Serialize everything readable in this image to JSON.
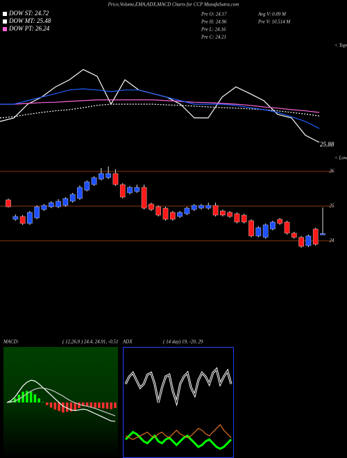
{
  "header": {
    "stats": [
      "Pre  O: 24.17",
      "Pre  H: 24.96",
      "Pre  L: 24.16",
      "Pre  C: 24.21",
      "Avg V: 0.09 M",
      "Pre  V: 10.514  M"
    ]
  },
  "chart_data": [
    {
      "type": "line",
      "title": "Price,Volume,EMA,ADX,MACD Charts for CCP MunafaSutra.com",
      "ylim": [
        23.8,
        26.8
      ],
      "annotations": [
        "25.88",
        "< Tops",
        "< Lows"
      ],
      "series": [
        {
          "name": "DOW ST: 24.72",
          "color": "#ffffff",
          "values": [
            24.77,
            24.86,
            25.21,
            25.39,
            25.65,
            25.83,
            26.09,
            25.92,
            25.21,
            25.83,
            25.57,
            25.48,
            25.39,
            25.21,
            24.86,
            24.86,
            25.39,
            25.65,
            25.48,
            25.3,
            24.95,
            24.86,
            24.42,
            24.24
          ]
        },
        {
          "name": "DOW MT: 25.48",
          "color": "#ffffff",
          "dashed": true,
          "values": [
            24.86,
            24.89,
            24.95,
            25.0,
            25.04,
            25.07,
            25.12,
            25.18,
            25.21,
            25.21,
            25.21,
            25.21,
            25.19,
            25.18,
            25.16,
            25.14,
            25.12,
            25.11,
            25.09,
            25.07,
            25.04,
            25.0,
            24.96,
            24.91
          ]
        },
        {
          "name": "DOW PT: 26.24",
          "color": "#ff66dd",
          "values": [
            25.21,
            25.21,
            25.23,
            25.25,
            25.26,
            25.28,
            25.3,
            25.32,
            25.32,
            25.32,
            25.32,
            25.32,
            25.3,
            25.28,
            25.26,
            25.25,
            25.23,
            25.21,
            25.18,
            25.14,
            25.11,
            25.07,
            25.04,
            25.0
          ]
        },
        {
          "color": "#2060ff",
          "values": [
            25.21,
            25.21,
            25.3,
            25.39,
            25.48,
            25.57,
            25.6,
            25.57,
            25.53,
            25.57,
            25.57,
            25.48,
            25.39,
            25.3,
            25.21,
            25.21,
            25.21,
            25.18,
            25.12,
            25.07,
            25.0,
            24.89,
            24.77,
            24.59
          ]
        }
      ]
    },
    {
      "type": "candlestick",
      "ylim": [
        23.7,
        26.3
      ],
      "yticks": [
        25,
        26,
        24
      ],
      "grid": true,
      "up_color": "#1e50ff",
      "down_color": "#ff1a1a",
      "open": [
        25.18,
        24.62,
        24.7,
        24.5,
        24.66,
        24.9,
        24.98,
        24.98,
        25.02,
        25.14,
        25.22,
        25.46,
        25.62,
        25.78,
        25.82,
        25.94,
        25.62,
        25.38,
        25.42,
        25.54,
        25.06,
        24.98,
        24.94,
        24.82,
        24.7,
        24.78,
        24.9,
        24.94,
        24.94,
        25.02,
        24.86,
        24.82,
        24.78,
        24.74,
        24.58,
        24.14,
        24.1,
        24.34,
        24.62,
        24.54,
        24.22,
        24.1,
        23.86,
        24.34,
        24.17
      ],
      "high": [
        25.22,
        24.76,
        24.74,
        24.86,
        25.02,
        25.06,
        25.14,
        25.2,
        25.26,
        25.38,
        25.6,
        25.74,
        25.86,
        26.1,
        26.14,
        26.06,
        25.66,
        25.58,
        25.62,
        25.62,
        25.1,
        25.02,
        24.98,
        24.86,
        24.86,
        24.98,
        25.06,
        25.06,
        25.1,
        25.1,
        24.9,
        24.86,
        24.82,
        24.78,
        24.62,
        24.42,
        24.5,
        24.58,
        24.66,
        24.58,
        24.26,
        24.14,
        24.18,
        24.38,
        24.96
      ],
      "low": [
        24.96,
        24.58,
        24.46,
        24.46,
        24.62,
        24.86,
        24.94,
        24.94,
        24.98,
        25.1,
        25.18,
        25.42,
        25.58,
        25.74,
        25.78,
        25.58,
        25.22,
        25.34,
        25.38,
        24.9,
        24.86,
        24.7,
        24.58,
        24.58,
        24.66,
        24.74,
        24.86,
        24.9,
        24.9,
        24.7,
        24.7,
        24.66,
        24.5,
        24.5,
        24.1,
        24.1,
        24.06,
        24.3,
        24.46,
        24.18,
        24.06,
        23.8,
        23.82,
        23.86,
        24.16
      ],
      "close": [
        24.98,
        24.7,
        24.5,
        24.82,
        24.98,
        25.02,
        25.1,
        25.14,
        25.22,
        25.34,
        25.54,
        25.7,
        25.82,
        25.94,
        25.94,
        25.62,
        25.26,
        25.54,
        25.54,
        24.94,
        24.9,
        24.74,
        24.62,
        24.62,
        24.82,
        24.94,
        25.02,
        25.02,
        25.02,
        24.74,
        24.74,
        24.7,
        24.54,
        24.54,
        24.14,
        24.38,
        24.46,
        24.54,
        24.5,
        24.22,
        24.1,
        23.84,
        24.14,
        23.9,
        24.21
      ]
    },
    {
      "type": "macd",
      "title": "MACD:",
      "subtitle": "( 12,26,9 ) 24.4, 24.91, -0.51",
      "ylim": [
        -1.5,
        1.5
      ],
      "positive_color": "#00ff00",
      "negative_color": "#ff3030",
      "series": [
        {
          "color": "#ffffff",
          "values": [
            0,
            0.05,
            0.15,
            0.3,
            0.45,
            0.55,
            0.6,
            0.58,
            0.5,
            0.4,
            0.3,
            0.2,
            0.1,
            0.0,
            -0.1,
            -0.15,
            -0.2,
            -0.22,
            -0.2,
            -0.18,
            -0.2,
            -0.25,
            -0.3,
            -0.35,
            -0.4,
            -0.45,
            -0.5,
            -0.51
          ]
        },
        {
          "color": "#cccccc",
          "values": [
            0,
            0.01,
            0.04,
            0.09,
            0.16,
            0.24,
            0.31,
            0.36,
            0.39,
            0.39,
            0.37,
            0.34,
            0.29,
            0.23,
            0.17,
            0.1,
            0.04,
            -0.01,
            -0.05,
            -0.08,
            -0.1,
            -0.13,
            -0.16,
            -0.2,
            -0.24,
            -0.28,
            -0.32,
            -0.36
          ]
        }
      ],
      "histogram": [
        0,
        0.04,
        0.11,
        0.21,
        0.29,
        0.31,
        0.29,
        0.22,
        0.11,
        0.01,
        -0.07,
        -0.14,
        -0.19,
        -0.23,
        -0.27,
        -0.25,
        -0.24,
        -0.21,
        -0.15,
        -0.1,
        -0.1,
        -0.12,
        -0.14,
        -0.15,
        -0.16,
        -0.17,
        -0.18,
        -0.15
      ]
    },
    {
      "type": "adx",
      "title": "ADX",
      "subtitle": "( 14  day) 19,  -20,  29",
      "ylim": [
        0,
        60
      ],
      "series": [
        {
          "color": "#ffffff",
          "double": true,
          "values": [
            40,
            44,
            46,
            42,
            38,
            40,
            45,
            46,
            40,
            30,
            38,
            44,
            45,
            36,
            30,
            40,
            44,
            46,
            38,
            34,
            42,
            46,
            44,
            40,
            46,
            48,
            40,
            44,
            47,
            40
          ]
        },
        {
          "color": "#00ff00",
          "width": 3,
          "values": [
            10,
            12,
            14,
            13,
            11,
            9,
            8,
            10,
            12,
            9,
            8,
            10,
            11,
            9,
            7,
            9,
            11,
            12,
            10,
            8,
            6,
            7,
            9,
            10,
            8,
            6,
            5,
            6,
            8,
            10
          ]
        },
        {
          "color": "#e07020",
          "values": [
            12,
            11,
            10,
            11,
            12,
            13,
            14,
            12,
            11,
            13,
            14,
            12,
            11,
            13,
            15,
            13,
            12,
            11,
            12,
            14,
            16,
            15,
            13,
            12,
            14,
            16,
            18,
            15,
            13,
            11
          ]
        }
      ]
    }
  ]
}
